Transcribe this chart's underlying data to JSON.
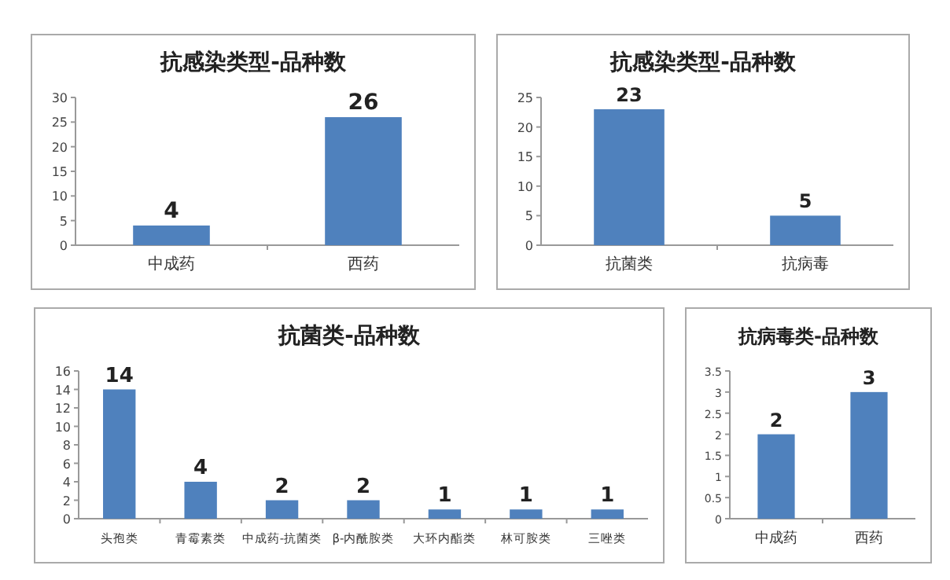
{
  "chart_data": [
    {
      "type": "bar",
      "title": "抗感染类型-品种数",
      "categories": [
        "中成药",
        "西药"
      ],
      "series": [
        {
          "color": "#4f81bd",
          "values": [
            4,
            26
          ]
        }
      ],
      "ylim": [
        0,
        30
      ],
      "yticks": [
        0,
        5,
        10,
        15,
        20,
        25,
        30
      ],
      "data_labels": true
    },
    {
      "type": "bar",
      "title": "抗感染类型-品种数",
      "categories": [
        "抗菌类",
        "抗病毒"
      ],
      "series": [
        {
          "color": "#4f81bd",
          "values": [
            23,
            5
          ]
        }
      ],
      "ylim": [
        0,
        25
      ],
      "yticks": [
        0,
        5,
        10,
        15,
        20,
        25
      ],
      "data_labels": true
    },
    {
      "type": "bar",
      "title": "抗菌类-品种数",
      "categories": [
        "头孢类",
        "青霉素类",
        "中成药-抗菌类",
        "β-内酰胺类",
        "大环内酯类",
        "林可胺类",
        "三唑类"
      ],
      "series": [
        {
          "color": "#4f81bd",
          "values": [
            14,
            4,
            2,
            2,
            1,
            1,
            1
          ]
        }
      ],
      "ylim": [
        0,
        16
      ],
      "yticks": [
        0,
        2,
        4,
        6,
        8,
        10,
        12,
        14,
        16
      ],
      "data_labels": true
    },
    {
      "type": "bar",
      "title": "抗病毒类-品种数",
      "categories": [
        "中成药",
        "西药"
      ],
      "series": [
        {
          "color": "#4f81bd",
          "values": [
            2,
            3
          ]
        }
      ],
      "ylim": [
        0,
        3.5
      ],
      "yticks": [
        0,
        0.5,
        1,
        1.5,
        2,
        2.5,
        3,
        3.5
      ],
      "data_labels": true
    }
  ]
}
